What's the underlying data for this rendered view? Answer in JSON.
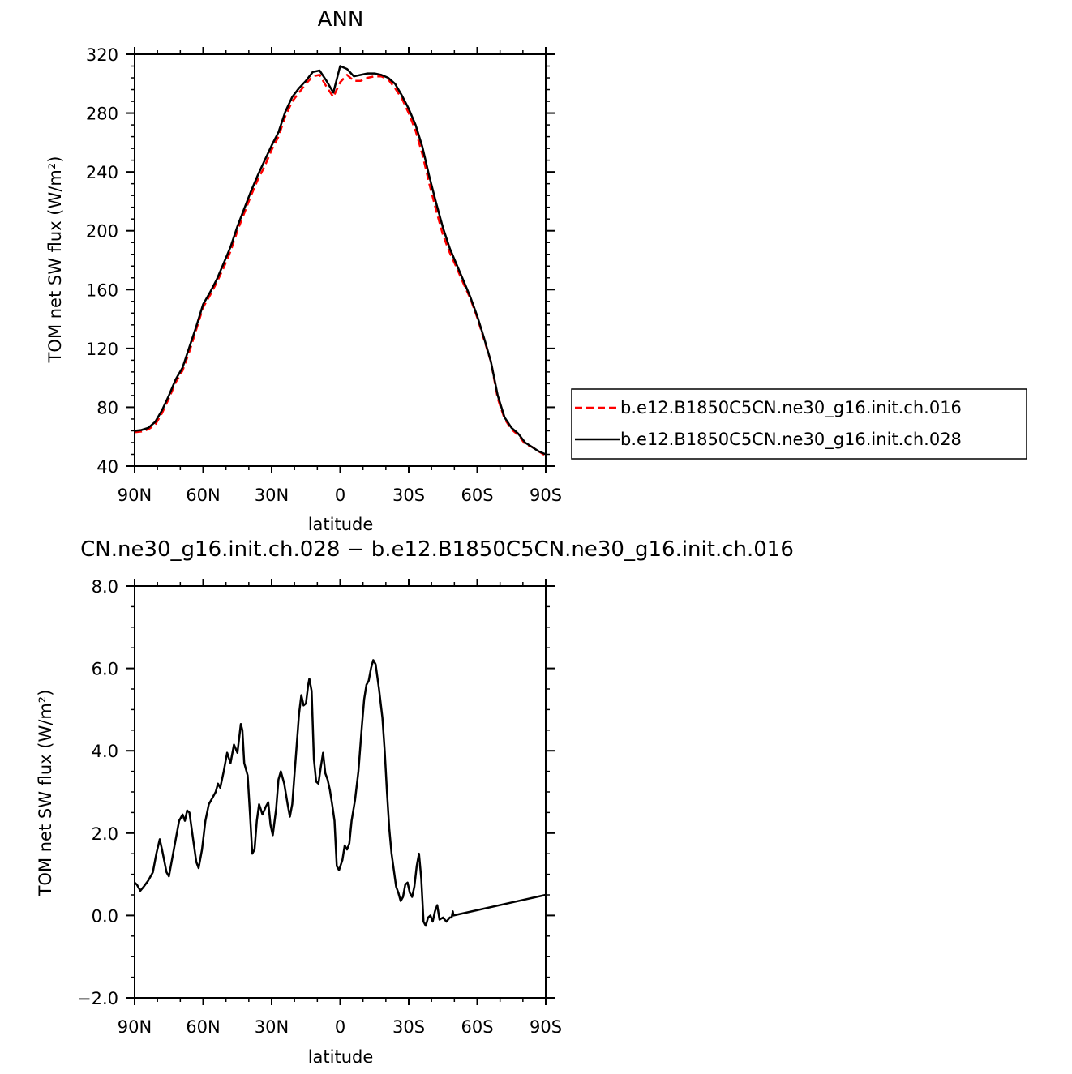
{
  "chart_data": [
    {
      "type": "line",
      "title": "ANN",
      "xlabel": "latitude",
      "ylabel": "TOM net SW flux (W/m²)",
      "xlim": [
        90,
        -90
      ],
      "ylim": [
        40,
        320
      ],
      "x_ticks": [
        {
          "value": 90,
          "label": "90N"
        },
        {
          "value": 60,
          "label": "60N"
        },
        {
          "value": 30,
          "label": "30N"
        },
        {
          "value": 0,
          "label": "0"
        },
        {
          "value": -30,
          "label": "30S"
        },
        {
          "value": -60,
          "label": "60S"
        },
        {
          "value": -90,
          "label": "90S"
        }
      ],
      "y_ticks": [
        {
          "value": 320,
          "label": "320"
        },
        {
          "value": 280,
          "label": "280"
        },
        {
          "value": 240,
          "label": "240"
        },
        {
          "value": 200,
          "label": "200"
        },
        {
          "value": 160,
          "label": "160"
        },
        {
          "value": 120,
          "label": "120"
        },
        {
          "value": 80,
          "label": "80"
        },
        {
          "value": 40,
          "label": "40"
        }
      ],
      "grid": false,
      "legend": {
        "position": "right",
        "entries": [
          {
            "name": "b.e12.B1850C5CN.ne30_g16.init.ch.016",
            "color": "#ff0000",
            "dash": "dashed"
          },
          {
            "name": "b.e12.B1850C5CN.ne30_g16.init.ch.028",
            "color": "#000000",
            "dash": "solid"
          }
        ]
      },
      "series": [
        {
          "name": "b.e12.B1850C5CN.ne30_g16.init.ch.016",
          "color": "#ff0000",
          "dash": "dashed",
          "points": [
            [
              90,
              63
            ],
            [
              87,
              63.5
            ],
            [
              84,
              65
            ],
            [
              81,
              68
            ],
            [
              78,
              76
            ],
            [
              75,
              86
            ],
            [
              72,
              97
            ],
            [
              69,
              105
            ],
            [
              66,
              118
            ],
            [
              63,
              133
            ],
            [
              60,
              148
            ],
            [
              57,
              156
            ],
            [
              54,
              165
            ],
            [
              51,
              175
            ],
            [
              48,
              186
            ],
            [
              45,
              200
            ],
            [
              42,
              212
            ],
            [
              39,
              224
            ],
            [
              36,
              235
            ],
            [
              33,
              244
            ],
            [
              30,
              255
            ],
            [
              27,
              264
            ],
            [
              24,
              278
            ],
            [
              21,
              288
            ],
            [
              18,
              294
            ],
            [
              15,
              300
            ],
            [
              12,
              305
            ],
            [
              9,
              306
            ],
            [
              6,
              298
            ],
            [
              3,
              291
            ],
            [
              0,
              301
            ],
            [
              -3,
              306
            ],
            [
              -6,
              302
            ],
            [
              -9,
              302
            ],
            [
              -12,
              304
            ],
            [
              -15,
              305
            ],
            [
              -18,
              305
            ],
            [
              -21,
              303
            ],
            [
              -24,
              297
            ],
            [
              -27,
              290
            ],
            [
              -30,
              280
            ],
            [
              -33,
              268
            ],
            [
              -36,
              252
            ],
            [
              -39,
              232
            ],
            [
              -42,
              214
            ],
            [
              -45,
              197
            ],
            [
              -48,
              185
            ],
            [
              -51,
              175
            ],
            [
              -54,
              164
            ],
            [
              -57,
              154
            ],
            [
              -60,
              141
            ],
            [
              -63,
              126
            ],
            [
              -66,
              111
            ],
            [
              -69,
              86
            ],
            [
              -72,
              72
            ],
            [
              -75,
              65
            ],
            [
              -78,
              61
            ],
            [
              -81,
              55
            ],
            [
              -84,
              53
            ],
            [
              -87,
              50
            ],
            [
              -90,
              47
            ]
          ]
        },
        {
          "name": "b.e12.B1850C5CN.ne30_g16.init.ch.028",
          "color": "#000000",
          "dash": "solid",
          "points": [
            [
              90,
              64
            ],
            [
              87,
              64.5
            ],
            [
              84,
              66
            ],
            [
              81,
              70
            ],
            [
              78,
              78
            ],
            [
              75,
              88
            ],
            [
              72,
              99
            ],
            [
              69,
              107
            ],
            [
              66,
              121
            ],
            [
              63,
              135
            ],
            [
              60,
              150
            ],
            [
              57,
              158
            ],
            [
              54,
              167
            ],
            [
              51,
              178
            ],
            [
              48,
              189
            ],
            [
              45,
              203
            ],
            [
              42,
              215
            ],
            [
              39,
              227
            ],
            [
              36,
              238
            ],
            [
              33,
              248
            ],
            [
              30,
              258
            ],
            [
              27,
              267
            ],
            [
              24,
              281
            ],
            [
              21,
              291
            ],
            [
              18,
              297
            ],
            [
              15,
              302
            ],
            [
              12,
              308
            ],
            [
              9,
              309
            ],
            [
              6,
              302
            ],
            [
              3,
              294
            ],
            [
              0,
              312
            ],
            [
              -3,
              310
            ],
            [
              -6,
              305
            ],
            [
              -9,
              306
            ],
            [
              -12,
              307
            ],
            [
              -15,
              307
            ],
            [
              -18,
              306
            ],
            [
              -21,
              304
            ],
            [
              -24,
              300
            ],
            [
              -27,
              292
            ],
            [
              -30,
              283
            ],
            [
              -33,
              272
            ],
            [
              -36,
              257
            ],
            [
              -39,
              237
            ],
            [
              -42,
              219
            ],
            [
              -45,
              202
            ],
            [
              -48,
              188
            ],
            [
              -51,
              177
            ],
            [
              -54,
              166
            ],
            [
              -57,
              155
            ],
            [
              -60,
              142
            ],
            [
              -63,
              127
            ],
            [
              -66,
              111
            ],
            [
              -69,
              88
            ],
            [
              -72,
              73
            ],
            [
              -75,
              66
            ],
            [
              -78,
              62
            ],
            [
              -81,
              56
            ],
            [
              -84,
              53
            ],
            [
              -87,
              50
            ],
            [
              -90,
              48
            ]
          ]
        }
      ]
    },
    {
      "type": "line",
      "title": "CN.ne30_g16.init.ch.028 − b.e12.B1850C5CN.ne30_g16.init.ch.016",
      "xlabel": "latitude",
      "ylabel": "TOM net SW flux (W/m²)",
      "xlim": [
        90,
        -90
      ],
      "ylim": [
        -2,
        8
      ],
      "x_ticks": [
        {
          "value": 90,
          "label": "90N"
        },
        {
          "value": 60,
          "label": "60N"
        },
        {
          "value": 30,
          "label": "30N"
        },
        {
          "value": 0,
          "label": "0"
        },
        {
          "value": -30,
          "label": "30S"
        },
        {
          "value": -60,
          "label": "60S"
        },
        {
          "value": -90,
          "label": "90S"
        }
      ],
      "y_ticks": [
        {
          "value": 8,
          "label": "8.0"
        },
        {
          "value": 6,
          "label": "6.0"
        },
        {
          "value": 4,
          "label": "4.0"
        },
        {
          "value": 2,
          "label": "2.0"
        },
        {
          "value": 0,
          "label": "0.0"
        },
        {
          "value": -2,
          "label": "−2.0"
        }
      ],
      "grid": false,
      "series": [
        {
          "color": "#000000",
          "dash": "solid",
          "points": [
            [
              90,
              0.8
            ],
            [
              89,
              0.75
            ],
            [
              87.5,
              0.6
            ],
            [
              86,
              0.7
            ],
            [
              84,
              0.85
            ],
            [
              82,
              1.05
            ],
            [
              80.5,
              1.5
            ],
            [
              79,
              1.85
            ],
            [
              78,
              1.6
            ],
            [
              76,
              1.05
            ],
            [
              75,
              0.95
            ],
            [
              73.5,
              1.4
            ],
            [
              72,
              1.85
            ],
            [
              70.5,
              2.3
            ],
            [
              69,
              2.45
            ],
            [
              68,
              2.3
            ],
            [
              67,
              2.55
            ],
            [
              66,
              2.5
            ],
            [
              64.5,
              1.9
            ],
            [
              63,
              1.3
            ],
            [
              62,
              1.15
            ],
            [
              60.5,
              1.6
            ],
            [
              59,
              2.3
            ],
            [
              57.5,
              2.7
            ],
            [
              56,
              2.85
            ],
            [
              54.5,
              3.0
            ],
            [
              53.5,
              3.2
            ],
            [
              52.5,
              3.1
            ],
            [
              51,
              3.5
            ],
            [
              49.5,
              3.95
            ],
            [
              48,
              3.7
            ],
            [
              46.5,
              4.15
            ],
            [
              45,
              3.95
            ],
            [
              43.5,
              4.65
            ],
            [
              42.8,
              4.5
            ],
            [
              42,
              3.7
            ],
            [
              40.5,
              3.4
            ],
            [
              39.5,
              2.5
            ],
            [
              38.5,
              1.5
            ],
            [
              37.5,
              1.6
            ],
            [
              36.5,
              2.3
            ],
            [
              35.5,
              2.7
            ],
            [
              34,
              2.45
            ],
            [
              32.5,
              2.65
            ],
            [
              31.5,
              2.75
            ],
            [
              30.5,
              2.2
            ],
            [
              29.5,
              1.95
            ],
            [
              28,
              2.6
            ],
            [
              27,
              3.3
            ],
            [
              26,
              3.5
            ],
            [
              24.5,
              3.2
            ],
            [
              23,
              2.7
            ],
            [
              22,
              2.4
            ],
            [
              21,
              2.7
            ],
            [
              19.5,
              3.8
            ],
            [
              18,
              4.9
            ],
            [
              17,
              5.35
            ],
            [
              16,
              5.1
            ],
            [
              15,
              5.15
            ],
            [
              14,
              5.6
            ],
            [
              13.5,
              5.75
            ],
            [
              12.5,
              5.45
            ],
            [
              11.5,
              3.8
            ],
            [
              10.5,
              3.25
            ],
            [
              9.5,
              3.2
            ],
            [
              8.5,
              3.6
            ],
            [
              7.5,
              3.95
            ],
            [
              6.5,
              3.45
            ],
            [
              5.5,
              3.3
            ],
            [
              4.5,
              3.05
            ],
            [
              3.5,
              2.7
            ],
            [
              2.5,
              2.3
            ],
            [
              1.5,
              1.2
            ],
            [
              0.5,
              1.1
            ],
            [
              -1,
              1.35
            ],
            [
              -2,
              1.7
            ],
            [
              -3,
              1.6
            ],
            [
              -4,
              1.75
            ],
            [
              -5,
              2.3
            ],
            [
              -6.5,
              2.8
            ],
            [
              -8,
              3.5
            ],
            [
              -9.5,
              4.6
            ],
            [
              -10.5,
              5.25
            ],
            [
              -11.5,
              5.6
            ],
            [
              -12.5,
              5.7
            ],
            [
              -13.5,
              6.0
            ],
            [
              -14.5,
              6.2
            ],
            [
              -15.5,
              6.1
            ],
            [
              -17,
              5.5
            ],
            [
              -18.5,
              4.8
            ],
            [
              -19.5,
              4.0
            ],
            [
              -20.5,
              3.0
            ],
            [
              -21.5,
              2.1
            ],
            [
              -22.5,
              1.5
            ],
            [
              -23.5,
              1.1
            ],
            [
              -24.5,
              0.7
            ],
            [
              -25.5,
              0.55
            ],
            [
              -26.5,
              0.35
            ],
            [
              -27.5,
              0.45
            ],
            [
              -28.5,
              0.75
            ],
            [
              -29.5,
              0.8
            ],
            [
              -30.5,
              0.55
            ],
            [
              -31.5,
              0.45
            ],
            [
              -32.5,
              0.7
            ],
            [
              -33.5,
              1.2
            ],
            [
              -34.5,
              1.5
            ],
            [
              -35.5,
              0.9
            ],
            [
              -36.5,
              -0.15
            ],
            [
              -37.5,
              -0.25
            ],
            [
              -38.5,
              -0.05
            ],
            [
              -39.5,
              0.0
            ],
            [
              -40.5,
              -0.15
            ],
            [
              -41.5,
              0.1
            ],
            [
              -42.5,
              0.25
            ],
            [
              -43.5,
              -0.1
            ],
            [
              -45,
              -0.05
            ],
            [
              -46.5,
              -0.15
            ],
            [
              -48,
              -0.05
            ],
            [
              -48.8,
              -0.05
            ],
            [
              -49.3,
              0.1
            ],
            [
              -49.6,
              0.0
            ],
            [
              -90,
              0.5
            ]
          ]
        }
      ]
    }
  ]
}
